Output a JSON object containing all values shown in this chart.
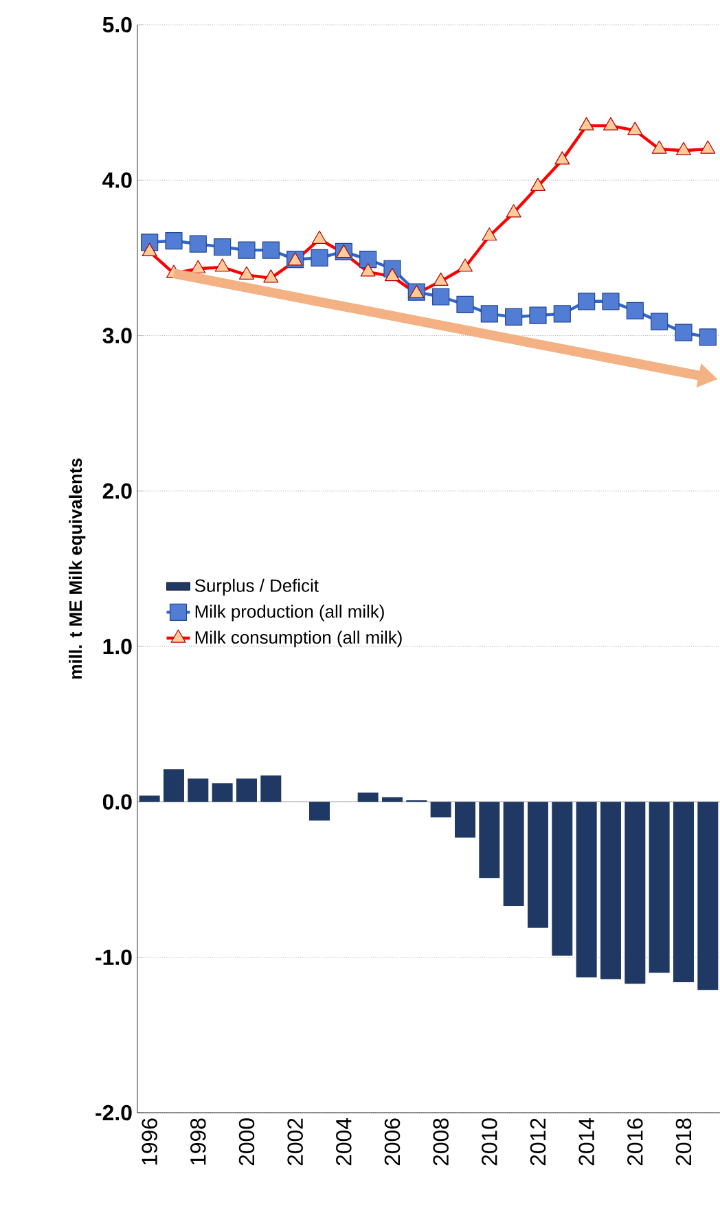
{
  "chart_data": {
    "type": "bar",
    "ylabel": "mill. t ME Milk equivalents",
    "categories": [
      "1996",
      null,
      "1998",
      null,
      "2000",
      null,
      "2002",
      null,
      "2004",
      null,
      "2006",
      null,
      "2008",
      null,
      "2010",
      null,
      "2012",
      null,
      "2014",
      null,
      "2016",
      null,
      "2018",
      null
    ],
    "series": [
      {
        "name": "Surplus / Deficit",
        "color": "#1f3864",
        "values": [
          0.04,
          0.21,
          0.15,
          0.12,
          0.15,
          0.17,
          0.0,
          -0.12,
          0.0,
          0.06,
          0.03,
          0.01,
          -0.1,
          -0.23,
          -0.49,
          -0.67,
          -0.81,
          -0.99,
          -1.13,
          -1.14,
          -1.17,
          -1.1,
          -1.16,
          -1.21
        ]
      },
      {
        "name": "Milk production (all milk)",
        "type": "line",
        "marker": "square",
        "color": "#3366cc",
        "values": [
          3.6,
          3.61,
          3.59,
          3.57,
          3.55,
          3.55,
          3.49,
          3.5,
          3.54,
          3.49,
          3.43,
          3.28,
          3.25,
          3.2,
          3.14,
          3.12,
          3.13,
          3.14,
          3.22,
          3.22,
          3.16,
          3.09,
          3.02,
          2.99
        ]
      },
      {
        "name": "Milk consumption (all milk)",
        "type": "line",
        "marker": "triangle",
        "color": "#ff0000",
        "values": [
          3.54,
          3.4,
          3.43,
          3.44,
          3.39,
          3.37,
          3.48,
          3.62,
          3.53,
          3.41,
          3.38,
          3.27,
          3.35,
          3.44,
          3.64,
          3.79,
          3.96,
          4.13,
          4.35,
          4.35,
          4.32,
          4.2,
          4.19,
          4.2
        ]
      }
    ],
    "ylim": [
      -2,
      5
    ],
    "yticks": [
      {
        "value": -2,
        "label": "-2.0"
      },
      {
        "value": -1,
        "label": "-1.0"
      },
      {
        "value": 0,
        "label": "0.0"
      },
      {
        "value": 1,
        "label": "1.0"
      },
      {
        "value": 2,
        "label": "2.0"
      },
      {
        "value": 3,
        "label": "3.0"
      },
      {
        "value": 4,
        "label": "4.0"
      },
      {
        "value": 5,
        "label": "5.0"
      }
    ],
    "grid": "y",
    "legend": "center left"
  }
}
